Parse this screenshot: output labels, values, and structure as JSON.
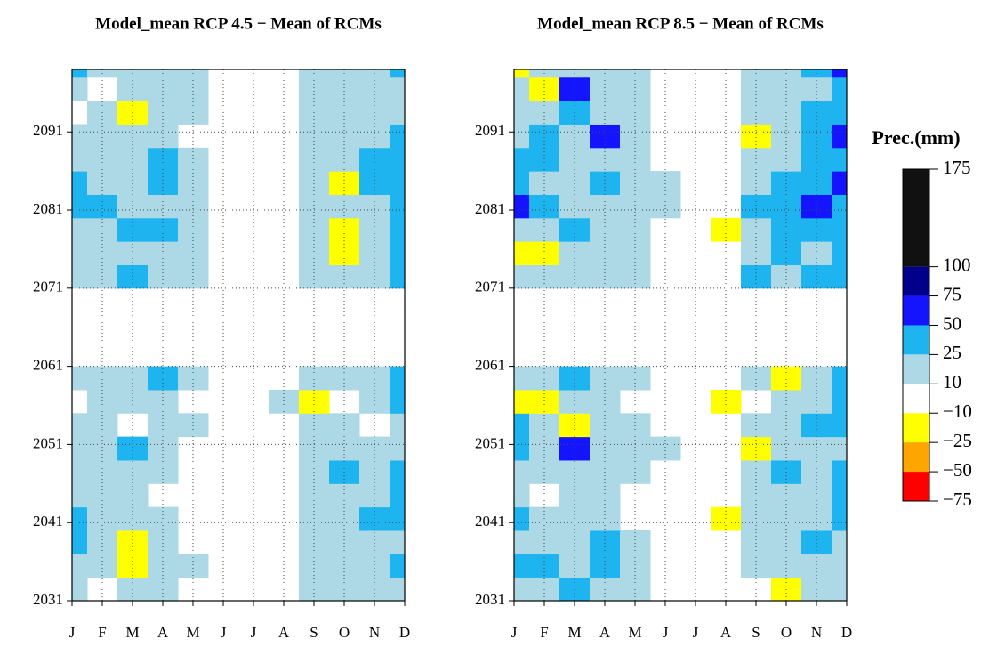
{
  "chart_data": [
    {
      "type": "heatmap",
      "title": "Model_mean RCP 4.5 −  Mean of RCMs",
      "categories": [
        "J",
        "F",
        "M",
        "A",
        "M",
        "J",
        "J",
        "A",
        "S",
        "O",
        "N",
        "D"
      ],
      "y": [
        2031,
        2034,
        2037,
        2040,
        2043,
        2046,
        2049,
        2052,
        2055,
        2058,
        2071,
        2074,
        2077,
        2080,
        2083,
        2086,
        2089,
        2092,
        2095,
        2098
      ],
      "z": [
        [
          15,
          0,
          15,
          15,
          0,
          0,
          0,
          0,
          15,
          15,
          15,
          15
        ],
        [
          15,
          15,
          -15,
          15,
          15,
          0,
          0,
          0,
          15,
          15,
          15,
          30
        ],
        [
          30,
          15,
          -15,
          15,
          0,
          0,
          0,
          0,
          15,
          15,
          15,
          15
        ],
        [
          30,
          15,
          15,
          15,
          0,
          0,
          0,
          0,
          15,
          15,
          30,
          30
        ],
        [
          15,
          15,
          15,
          0,
          0,
          0,
          0,
          0,
          15,
          15,
          15,
          30
        ],
        [
          15,
          15,
          15,
          15,
          0,
          0,
          0,
          0,
          15,
          30,
          15,
          30
        ],
        [
          15,
          15,
          30,
          15,
          0,
          0,
          0,
          0,
          15,
          15,
          15,
          15
        ],
        [
          15,
          15,
          0,
          15,
          15,
          0,
          0,
          0,
          15,
          15,
          0,
          15
        ],
        [
          0,
          15,
          15,
          15,
          0,
          0,
          0,
          15,
          -15,
          0,
          15,
          30
        ],
        [
          15,
          15,
          15,
          30,
          15,
          0,
          0,
          0,
          15,
          15,
          15,
          30
        ],
        [
          15,
          15,
          30,
          15,
          15,
          0,
          0,
          0,
          15,
          15,
          15,
          30
        ],
        [
          15,
          15,
          15,
          15,
          15,
          0,
          0,
          0,
          15,
          -15,
          15,
          30
        ],
        [
          15,
          15,
          30,
          30,
          15,
          0,
          0,
          0,
          15,
          -15,
          15,
          30
        ],
        [
          30,
          30,
          15,
          15,
          15,
          0,
          0,
          0,
          15,
          15,
          15,
          30
        ],
        [
          30,
          15,
          15,
          30,
          15,
          0,
          0,
          0,
          15,
          -15,
          30,
          30
        ],
        [
          15,
          15,
          15,
          30,
          15,
          0,
          0,
          0,
          15,
          15,
          30,
          30
        ],
        [
          15,
          15,
          15,
          15,
          0,
          0,
          0,
          0,
          15,
          15,
          15,
          30
        ],
        [
          0,
          15,
          -15,
          15,
          15,
          0,
          0,
          0,
          15,
          15,
          15,
          15
        ],
        [
          15,
          0,
          15,
          15,
          15,
          0,
          0,
          0,
          15,
          15,
          15,
          15
        ],
        [
          30,
          15,
          15,
          15,
          15,
          0,
          0,
          0,
          15,
          15,
          15,
          30
        ]
      ],
      "ylim": [
        2031,
        2099
      ],
      "yticks": [
        2031,
        2041,
        2051,
        2061,
        2071,
        2081,
        2091
      ],
      "grid": true
    },
    {
      "type": "heatmap",
      "title": "Model_mean RCP 8.5 −  Mean of RCMs",
      "categories": [
        "J",
        "F",
        "M",
        "A",
        "M",
        "J",
        "J",
        "A",
        "S",
        "O",
        "N",
        "D"
      ],
      "y": [
        2031,
        2034,
        2037,
        2040,
        2043,
        2046,
        2049,
        2052,
        2055,
        2058,
        2071,
        2074,
        2077,
        2080,
        2083,
        2086,
        2089,
        2092,
        2095,
        2098
      ],
      "z": [
        [
          15,
          15,
          30,
          15,
          15,
          0,
          0,
          0,
          0,
          -15,
          15,
          15
        ],
        [
          30,
          30,
          15,
          30,
          15,
          0,
          0,
          0,
          15,
          15,
          15,
          15
        ],
        [
          15,
          15,
          15,
          30,
          15,
          0,
          0,
          0,
          15,
          15,
          30,
          15
        ],
        [
          30,
          15,
          15,
          15,
          0,
          0,
          0,
          -15,
          15,
          15,
          15,
          30
        ],
        [
          15,
          0,
          15,
          15,
          0,
          0,
          0,
          0,
          15,
          15,
          15,
          30
        ],
        [
          15,
          15,
          15,
          15,
          15,
          0,
          0,
          0,
          15,
          30,
          15,
          30
        ],
        [
          30,
          15,
          60,
          15,
          15,
          15,
          0,
          0,
          -15,
          15,
          15,
          15
        ],
        [
          30,
          15,
          -15,
          15,
          15,
          0,
          0,
          0,
          15,
          15,
          30,
          30
        ],
        [
          -15,
          -15,
          15,
          15,
          0,
          0,
          0,
          -15,
          0,
          15,
          15,
          30
        ],
        [
          15,
          15,
          30,
          15,
          15,
          0,
          0,
          0,
          15,
          -15,
          15,
          30
        ],
        [
          15,
          15,
          15,
          15,
          15,
          0,
          0,
          0,
          30,
          15,
          30,
          30
        ],
        [
          -15,
          -15,
          15,
          15,
          15,
          0,
          0,
          0,
          15,
          30,
          15,
          30
        ],
        [
          15,
          15,
          30,
          15,
          15,
          0,
          0,
          -15,
          15,
          30,
          30,
          30
        ],
        [
          60,
          30,
          15,
          15,
          15,
          15,
          0,
          0,
          30,
          30,
          60,
          30
        ],
        [
          30,
          15,
          15,
          30,
          15,
          15,
          0,
          0,
          15,
          30,
          30,
          60
        ],
        [
          30,
          30,
          15,
          15,
          15,
          0,
          0,
          0,
          15,
          15,
          30,
          30
        ],
        [
          15,
          30,
          15,
          60,
          15,
          0,
          0,
          0,
          -15,
          15,
          30,
          60
        ],
        [
          15,
          15,
          30,
          15,
          15,
          0,
          0,
          0,
          15,
          15,
          30,
          30
        ],
        [
          15,
          -15,
          60,
          15,
          15,
          0,
          0,
          0,
          15,
          15,
          15,
          30
        ],
        [
          -15,
          15,
          15,
          15,
          15,
          0,
          0,
          0,
          15,
          15,
          30,
          60
        ]
      ],
      "ylim": [
        2031,
        2099
      ],
      "yticks": [
        2031,
        2041,
        2051,
        2061,
        2071,
        2081,
        2091
      ],
      "grid": true
    }
  ],
  "colorbar": {
    "title": "Prec.(mm)",
    "ticks": [
      175,
      100,
      75,
      50,
      25,
      10,
      {
        "value": -10,
        "label": "−10"
      },
      {
        "value": -25,
        "label": "−25"
      },
      {
        "value": -50,
        "label": "−50"
      },
      {
        "value": -75,
        "label": "−75"
      }
    ],
    "colors": [
      "#111111",
      "#00008b",
      "#1414ff",
      "#1eb4f0",
      "#add8e6",
      "#ffffff",
      "#ffff00",
      "#ffa500",
      "#ff0000"
    ]
  }
}
